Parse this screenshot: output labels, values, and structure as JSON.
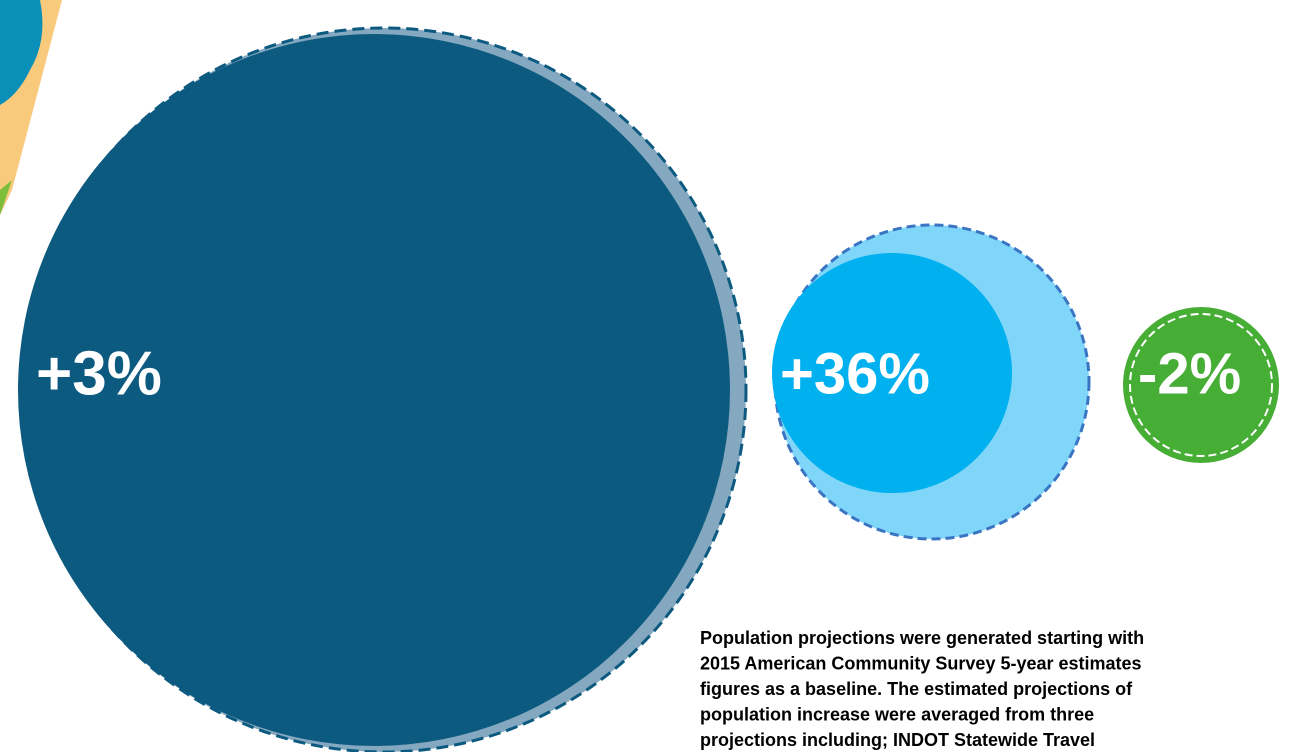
{
  "bubbles": [
    {
      "label": "+3%"
    },
    {
      "label": "+36%"
    },
    {
      "label": "-2%"
    }
  ],
  "note": {
    "lines": [
      "Population projections were generated starting with",
      "2015 American Community Survey 5-year estimates",
      "figures as a baseline. The estimated projections of",
      "population increase were averaged from three",
      "projections including; INDOT Statewide Travel"
    ]
  }
}
